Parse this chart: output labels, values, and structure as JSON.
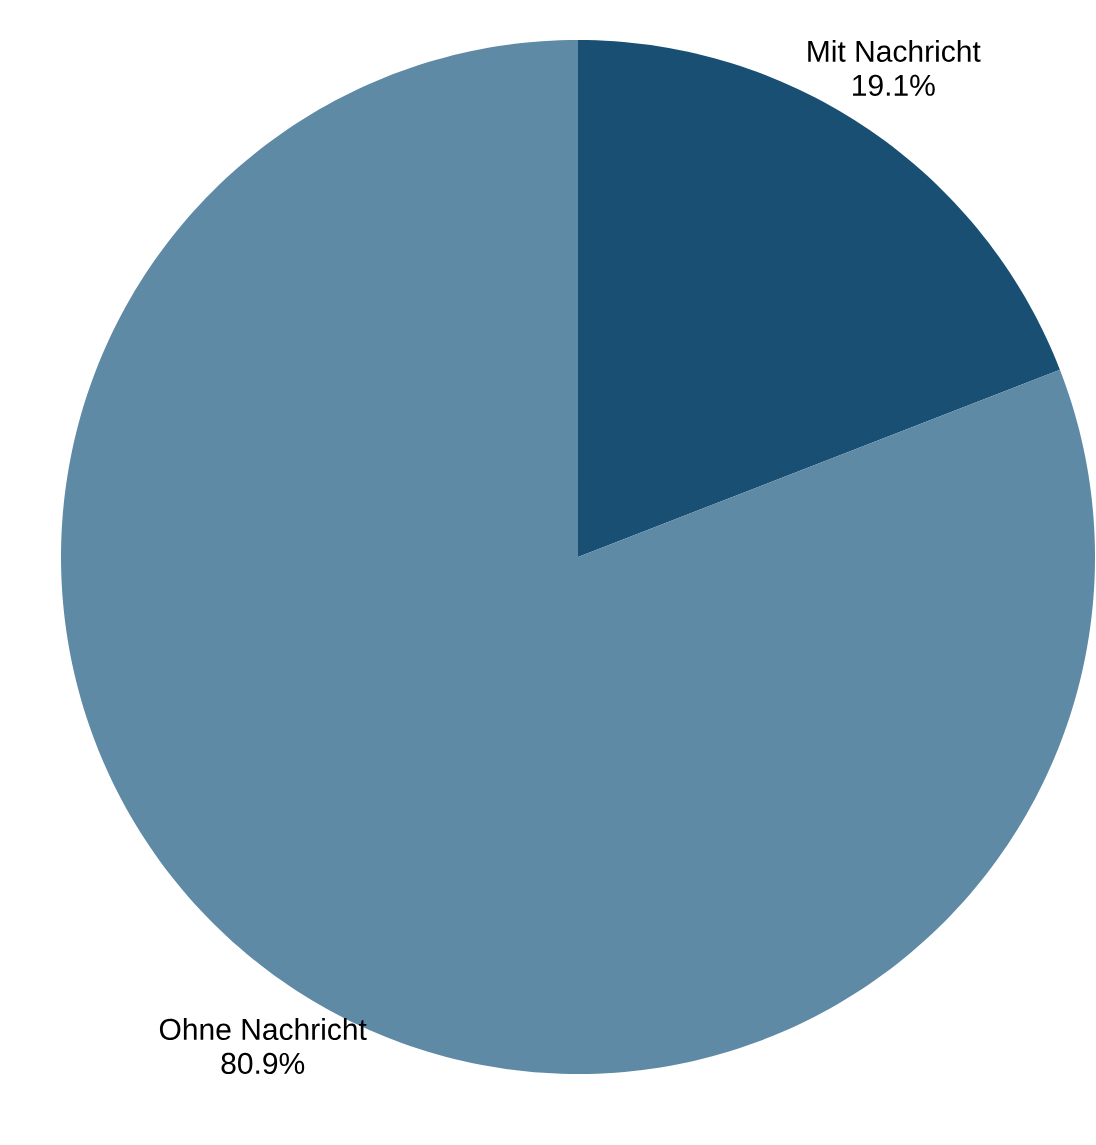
{
  "chart_data": {
    "type": "pie",
    "categories": [
      "Mit Nachricht",
      "Ohne Nachricht"
    ],
    "values": [
      19.1,
      80.9
    ],
    "value_labels": [
      "19.1%",
      "80.9%"
    ],
    "colors": [
      "#184f73",
      "#5e8aa6"
    ]
  }
}
